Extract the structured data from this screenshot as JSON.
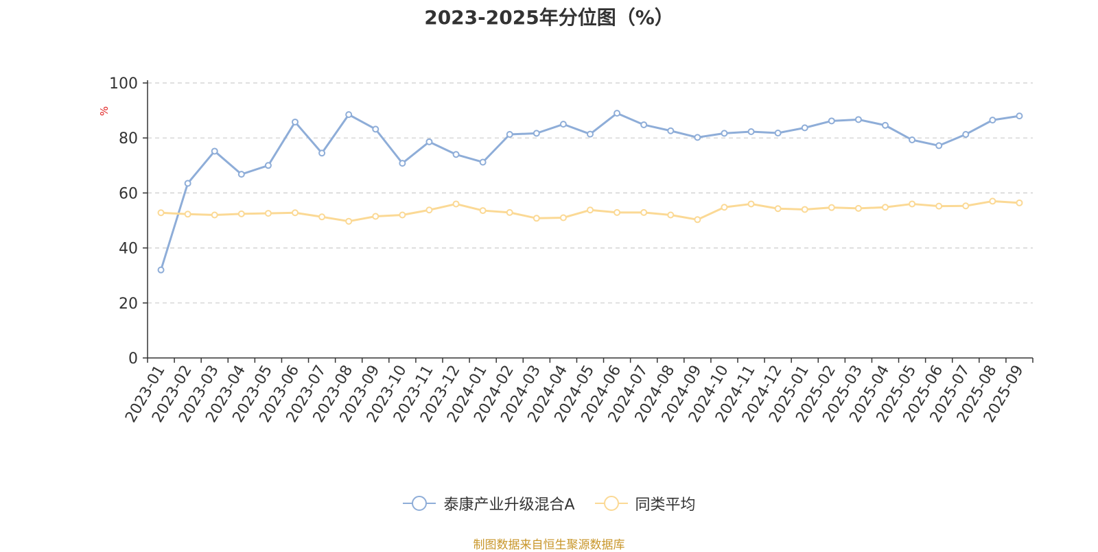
{
  "chart_data": {
    "type": "line",
    "title": "2023-2025年分位图（%）",
    "ylabel": "%",
    "xlabel": "",
    "ylim": [
      0,
      100
    ],
    "yticks": [
      0,
      20,
      40,
      60,
      80,
      100
    ],
    "grid": true,
    "legend_position": "bottom",
    "categories": [
      "2023-01",
      "2023-02",
      "2023-03",
      "2023-04",
      "2023-05",
      "2023-06",
      "2023-07",
      "2023-08",
      "2023-09",
      "2023-10",
      "2023-11",
      "2023-12",
      "2024-01",
      "2024-02",
      "2024-03",
      "2024-04",
      "2024-05",
      "2024-06",
      "2024-07",
      "2024-08",
      "2024-09",
      "2024-10",
      "2024-11",
      "2024-12",
      "2025-01",
      "2025-02",
      "2025-03",
      "2025-04",
      "2025-05",
      "2025-06",
      "2025-07",
      "2025-08",
      "2025-09"
    ],
    "series": [
      {
        "name": "泰康产业升级混合A",
        "color": "#8eadd8",
        "values": [
          32,
          63.5,
          75.2,
          66.8,
          70,
          85.8,
          74.5,
          88.5,
          83.2,
          70.8,
          78.6,
          74,
          71.2,
          81.3,
          81.7,
          85,
          81.4,
          89,
          84.8,
          82.6,
          80.2,
          81.7,
          82.3,
          81.8,
          83.7,
          86.2,
          86.7,
          84.6,
          79.3,
          77.2,
          81.3,
          86.5,
          88
        ]
      },
      {
        "name": "同类平均",
        "color": "#fbd995",
        "values": [
          52.8,
          52.3,
          52,
          52.4,
          52.6,
          52.8,
          51.3,
          49.7,
          51.5,
          52,
          53.8,
          56,
          53.6,
          52.9,
          50.8,
          51,
          53.8,
          52.9,
          52.9,
          52,
          50.3,
          54.8,
          56,
          54.3,
          54,
          54.7,
          54.4,
          54.8,
          56,
          55.2,
          55.3,
          57,
          56.4
        ]
      }
    ],
    "source_note": "制图数据来自恒生聚源数据库"
  }
}
